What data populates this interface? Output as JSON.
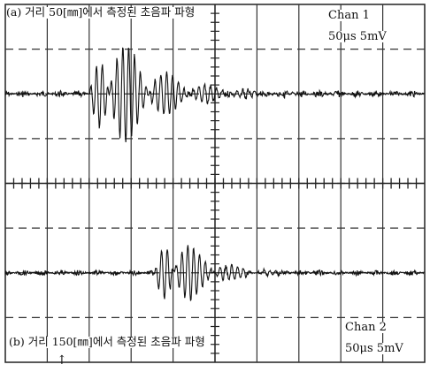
{
  "labels": {
    "trace_a_title": "(a) 거리 50[㎜]에서 측정된 초음파 파형",
    "trace_b_title": "(b) 거리 150[㎜]에서 측정된 초음파 파형",
    "ch1_name": "Chan 1",
    "ch1_setting": "50μs 5mV",
    "ch2_name": "Chan 2",
    "ch2_setting": "50μs 5mV"
  },
  "chart_data": {
    "type": "line",
    "grid": true,
    "grid_divisions": {
      "x": 10,
      "y": 8
    },
    "x_scale": "50 μs/div",
    "y_scale": "5 mV/div",
    "series": [
      {
        "name": "Chan 1",
        "baseline_div": 2.0,
        "burst_start_div": 2.0,
        "burst_peak_div": 2.4,
        "peak_amplitude_div": 1.7,
        "decay_end_div": 6.0,
        "noise_amplitude_div": 0.15,
        "color": "#111111"
      },
      {
        "name": "Chan 2",
        "baseline_div": 6.0,
        "burst_start_div": 3.55,
        "burst_peak_div": 3.9,
        "peak_amplitude_div": 1.2,
        "decay_end_div": 6.3,
        "noise_amplitude_div": 0.12,
        "color": "#111111"
      }
    ]
  }
}
